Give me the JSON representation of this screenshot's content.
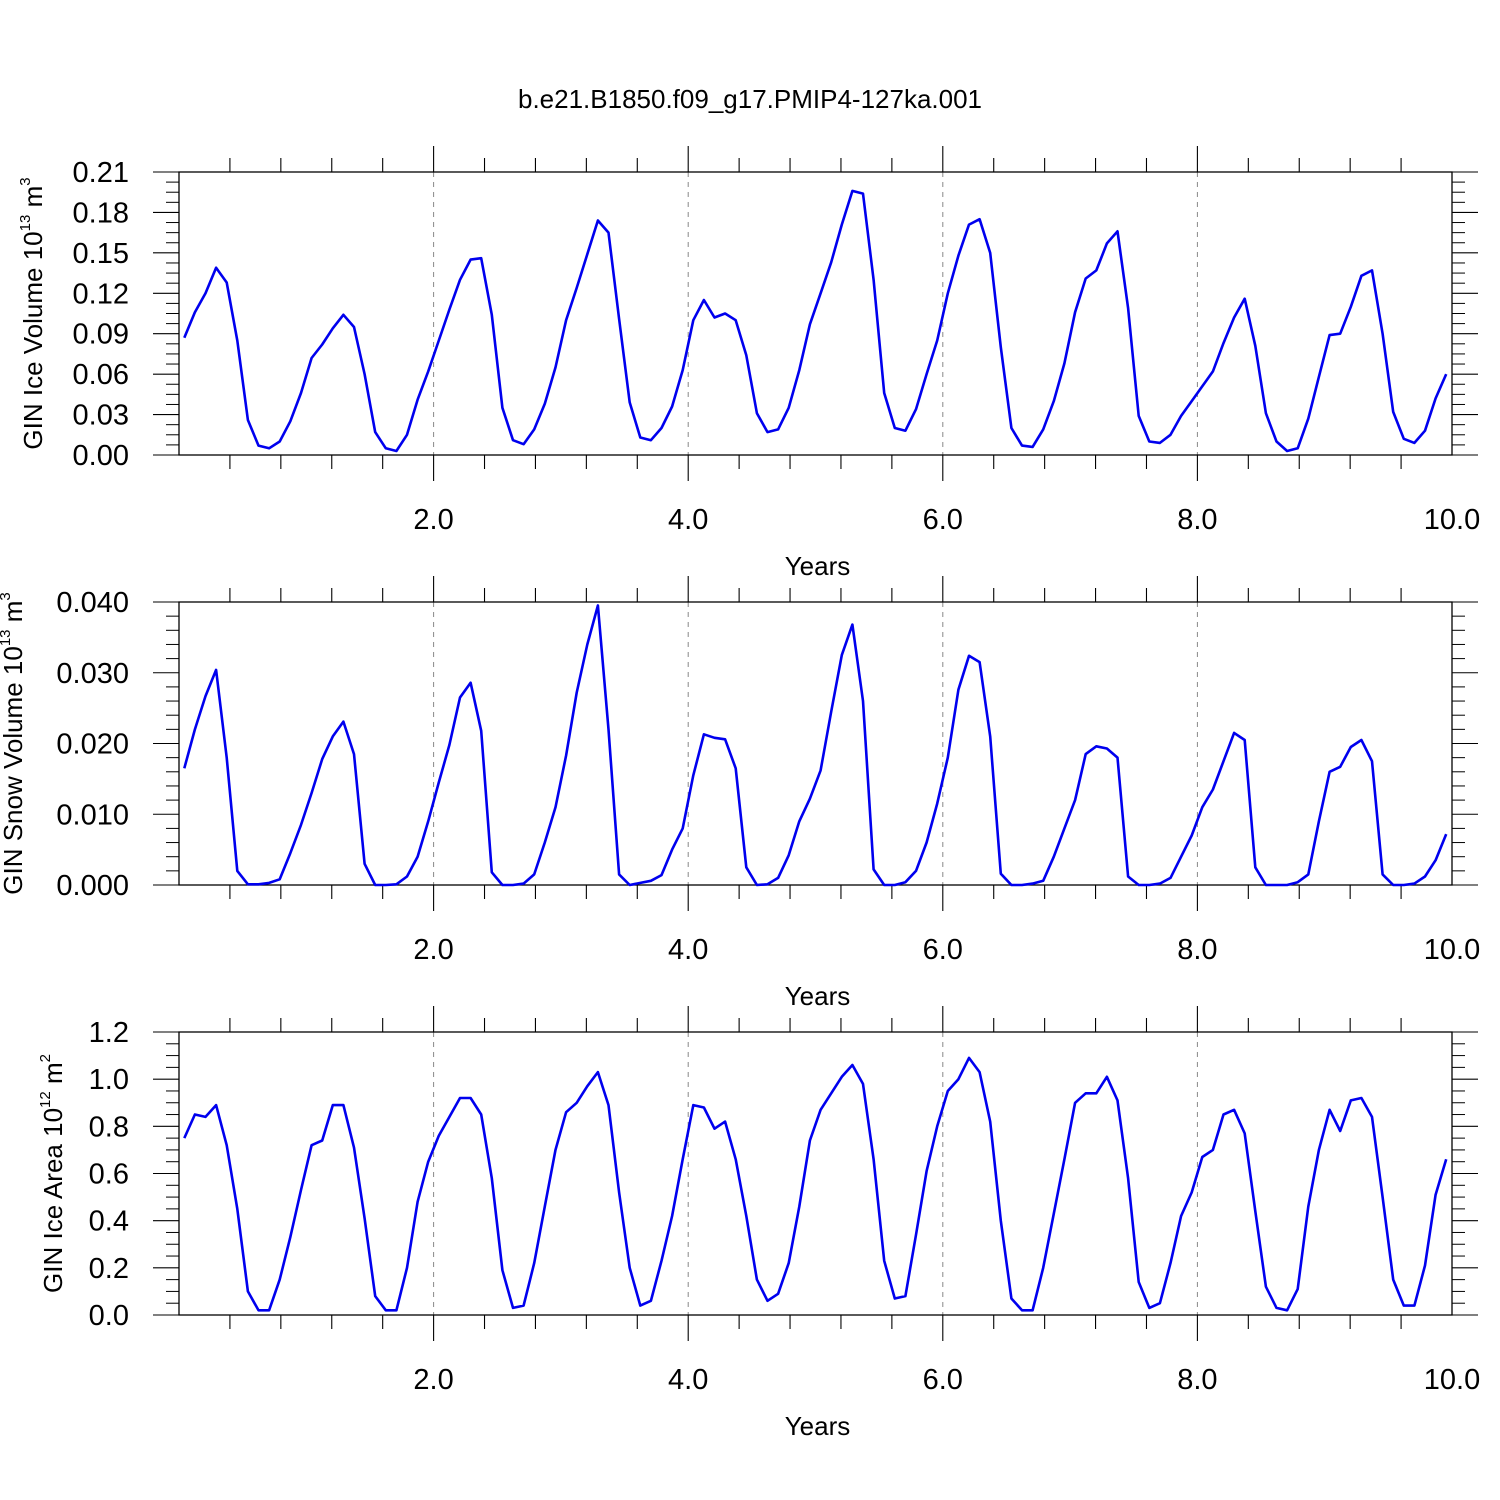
{
  "title": "b.e21.B1850.f09_g17.PMIP4-127ka.001",
  "series_color": "#0000ee",
  "chart_data": [
    {
      "type": "line",
      "ylabel": {
        "base": "GIN Ice Volume 10",
        "exp": "13",
        "unit": " m",
        "unit_exp": "3"
      },
      "xlabel": "Years",
      "xlim": [
        0.0,
        10.0
      ],
      "ylim": [
        0.0,
        0.21
      ],
      "x_ticks": [
        "2.0",
        "4.0",
        "6.0",
        "8.0",
        "10.0"
      ],
      "y_ticks": [
        "0.00",
        "0.03",
        "0.06",
        "0.09",
        "0.12",
        "0.15",
        "0.18",
        "0.21"
      ],
      "y_tick_values": [
        0.0,
        0.03,
        0.06,
        0.09,
        0.12,
        0.15,
        0.18,
        0.21
      ],
      "grid": "dashed vertical at major x ticks",
      "x_start": 0.0417,
      "x_step": 0.0833,
      "values": [
        0.087,
        0.106,
        0.12,
        0.139,
        0.128,
        0.085,
        0.026,
        0.007,
        0.005,
        0.01,
        0.025,
        0.046,
        0.072,
        0.082,
        0.094,
        0.104,
        0.095,
        0.06,
        0.017,
        0.005,
        0.003,
        0.015,
        0.041,
        0.062,
        0.085,
        0.108,
        0.13,
        0.145,
        0.146,
        0.104,
        0.035,
        0.011,
        0.008,
        0.019,
        0.038,
        0.065,
        0.1,
        0.124,
        0.149,
        0.174,
        0.165,
        0.101,
        0.039,
        0.013,
        0.011,
        0.02,
        0.036,
        0.063,
        0.1,
        0.115,
        0.102,
        0.105,
        0.1,
        0.074,
        0.031,
        0.017,
        0.019,
        0.035,
        0.063,
        0.097,
        0.12,
        0.143,
        0.171,
        0.196,
        0.194,
        0.13,
        0.046,
        0.02,
        0.018,
        0.034,
        0.06,
        0.085,
        0.12,
        0.148,
        0.171,
        0.175,
        0.15,
        0.08,
        0.02,
        0.007,
        0.006,
        0.019,
        0.04,
        0.068,
        0.106,
        0.131,
        0.137,
        0.157,
        0.166,
        0.109,
        0.029,
        0.01,
        0.009,
        0.015,
        0.029,
        0.04,
        0.051,
        0.062,
        0.083,
        0.102,
        0.116,
        0.081,
        0.031,
        0.01,
        0.003,
        0.005,
        0.027,
        0.058,
        0.089,
        0.09,
        0.11,
        0.133,
        0.137,
        0.09,
        0.032,
        0.012,
        0.009,
        0.018,
        0.042,
        0.06
      ]
    },
    {
      "type": "line",
      "ylabel": {
        "base": "GIN Snow Volume 10",
        "exp": "13",
        "unit": " m",
        "unit_exp": "3"
      },
      "xlabel": "Years",
      "xlim": [
        0.0,
        10.0
      ],
      "ylim": [
        0.0,
        0.04
      ],
      "x_ticks": [
        "2.0",
        "4.0",
        "6.0",
        "8.0",
        "10.0"
      ],
      "y_ticks": [
        "0.000",
        "0.010",
        "0.020",
        "0.030",
        "0.040"
      ],
      "y_tick_values": [
        0.0,
        0.01,
        0.02,
        0.03,
        0.04
      ],
      "grid": "dashed vertical at major x ticks",
      "x_start": 0.0417,
      "x_step": 0.0833,
      "values": [
        0.0165,
        0.022,
        0.0267,
        0.0304,
        0.018,
        0.002,
        0.0001,
        0.0001,
        0.0003,
        0.0008,
        0.0045,
        0.0085,
        0.013,
        0.0178,
        0.021,
        0.0231,
        0.0185,
        0.003,
        0.0,
        0.0,
        0.0001,
        0.0012,
        0.004,
        0.009,
        0.0145,
        0.0198,
        0.0265,
        0.0286,
        0.0218,
        0.0018,
        0.0,
        0.0,
        0.0002,
        0.0015,
        0.006,
        0.011,
        0.0183,
        0.0272,
        0.034,
        0.0395,
        0.022,
        0.0015,
        0.0,
        0.0003,
        0.0006,
        0.0014,
        0.005,
        0.008,
        0.0155,
        0.0213,
        0.0208,
        0.0206,
        0.0165,
        0.0025,
        0.0,
        0.0001,
        0.001,
        0.0042,
        0.009,
        0.0122,
        0.0162,
        0.0245,
        0.0325,
        0.0368,
        0.026,
        0.0022,
        0.0,
        0.0,
        0.0004,
        0.002,
        0.006,
        0.0115,
        0.018,
        0.0276,
        0.0324,
        0.0315,
        0.021,
        0.0016,
        0.0,
        0.0,
        0.0002,
        0.0006,
        0.004,
        0.008,
        0.012,
        0.0185,
        0.0196,
        0.0193,
        0.018,
        0.0012,
        0.0,
        0.0,
        0.0002,
        0.001,
        0.004,
        0.007,
        0.011,
        0.0135,
        0.0175,
        0.0215,
        0.0205,
        0.0025,
        0.0,
        0.0,
        0.0,
        0.0004,
        0.0015,
        0.009,
        0.016,
        0.0167,
        0.0195,
        0.0205,
        0.0175,
        0.0015,
        0.0,
        0.0,
        0.0002,
        0.0012,
        0.0035,
        0.0072
      ]
    },
    {
      "type": "line",
      "ylabel": {
        "base": "GIN Ice Area 10",
        "exp": "12",
        "unit": " m",
        "unit_exp": "2"
      },
      "xlabel": "Years",
      "xlim": [
        0.0,
        10.0
      ],
      "ylim": [
        0.0,
        1.2
      ],
      "x_ticks": [
        "2.0",
        "4.0",
        "6.0",
        "8.0",
        "10.0"
      ],
      "y_ticks": [
        "0.0",
        "0.2",
        "0.4",
        "0.6",
        "0.8",
        "1.0",
        "1.2"
      ],
      "y_tick_values": [
        0.0,
        0.2,
        0.4,
        0.6,
        0.8,
        1.0,
        1.2
      ],
      "grid": "dashed vertical at major x ticks",
      "x_start": 0.0417,
      "x_step": 0.0833,
      "values": [
        0.75,
        0.85,
        0.84,
        0.89,
        0.72,
        0.45,
        0.1,
        0.02,
        0.02,
        0.15,
        0.33,
        0.53,
        0.72,
        0.74,
        0.89,
        0.89,
        0.71,
        0.41,
        0.08,
        0.02,
        0.02,
        0.2,
        0.48,
        0.65,
        0.76,
        0.84,
        0.92,
        0.92,
        0.85,
        0.58,
        0.19,
        0.03,
        0.04,
        0.22,
        0.46,
        0.7,
        0.86,
        0.9,
        0.97,
        1.03,
        0.89,
        0.52,
        0.2,
        0.04,
        0.06,
        0.23,
        0.42,
        0.66,
        0.89,
        0.88,
        0.79,
        0.82,
        0.66,
        0.42,
        0.15,
        0.06,
        0.09,
        0.22,
        0.46,
        0.74,
        0.87,
        0.94,
        1.01,
        1.06,
        0.98,
        0.66,
        0.23,
        0.07,
        0.08,
        0.34,
        0.61,
        0.8,
        0.95,
        1.0,
        1.09,
        1.03,
        0.82,
        0.4,
        0.07,
        0.02,
        0.02,
        0.2,
        0.43,
        0.66,
        0.9,
        0.94,
        0.94,
        1.01,
        0.91,
        0.58,
        0.14,
        0.03,
        0.05,
        0.22,
        0.42,
        0.52,
        0.67,
        0.7,
        0.85,
        0.87,
        0.77,
        0.44,
        0.12,
        0.03,
        0.02,
        0.11,
        0.46,
        0.7,
        0.87,
        0.78,
        0.91,
        0.92,
        0.84,
        0.5,
        0.15,
        0.04,
        0.04,
        0.21,
        0.51,
        0.66
      ]
    }
  ]
}
